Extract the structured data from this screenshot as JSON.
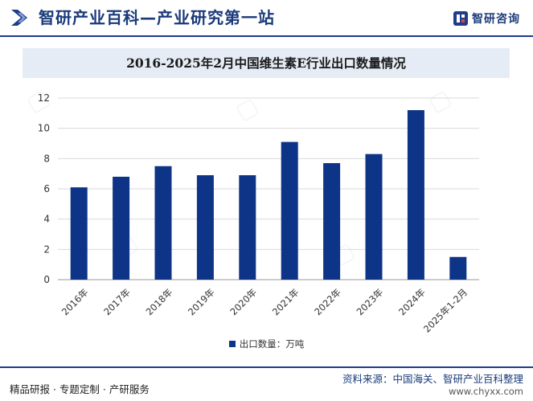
{
  "header": {
    "title": "智研产业百科—产业研究第一站",
    "brand_name": "智研咨询"
  },
  "colors": {
    "primary": "#1f3c88",
    "bar": "#0d3487",
    "title_band": "#e6ecf5"
  },
  "chart_data": {
    "type": "bar",
    "title": "2016-2025年2月中国维生素E行业出口数量情况",
    "categories": [
      "2016年",
      "2017年",
      "2018年",
      "2019年",
      "2020年",
      "2021年",
      "2022年",
      "2023年",
      "2024年",
      "2025年1-2月"
    ],
    "series": [
      {
        "name": "出口数量：万吨",
        "values": [
          6.1,
          6.8,
          7.5,
          6.9,
          6.9,
          9.1,
          7.7,
          8.3,
          11.2,
          1.5
        ]
      }
    ],
    "ylim": [
      0,
      12
    ],
    "yticks": [
      0,
      2,
      4,
      6,
      8,
      10,
      12
    ],
    "grid": true,
    "legend": "bottom"
  },
  "footer": {
    "left_text": "精品研报 · 专题定制 · 产研服务",
    "source": "资料来源：中国海关、智研产业百科整理",
    "url": "www.chyxx.com"
  }
}
